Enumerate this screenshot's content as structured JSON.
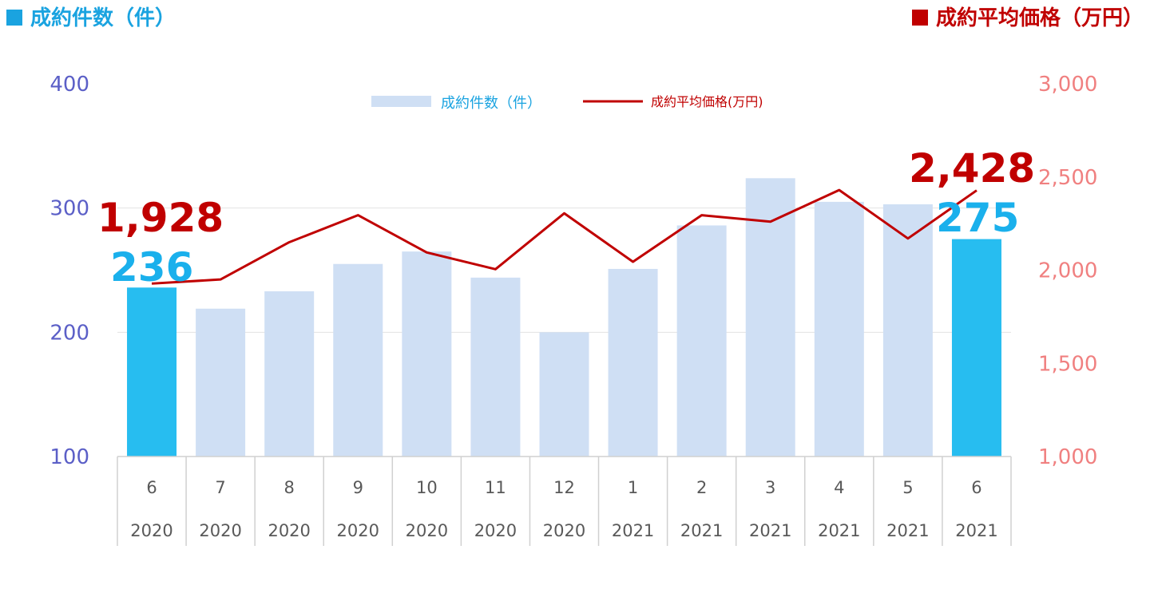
{
  "headers": {
    "left": "成約件数（件）",
    "right": "成約平均価格（万円）"
  },
  "legend": {
    "bar": "成約件数（件）",
    "line": "成約平均価格(万円)"
  },
  "colors": {
    "bar": "#cfdff4",
    "bar_highlight": "#27bdf0",
    "line": "#c00000",
    "left_axis": "#5b5fc7",
    "right_axis": "#f08080"
  },
  "chart_data": {
    "type": "bar",
    "categories": [
      "6",
      "7",
      "8",
      "9",
      "10",
      "11",
      "12",
      "1",
      "2",
      "3",
      "4",
      "5",
      "6"
    ],
    "years": [
      "2020",
      "2020",
      "2020",
      "2020",
      "2020",
      "2020",
      "2020",
      "2021",
      "2021",
      "2021",
      "2021",
      "2021",
      "2021"
    ],
    "series": [
      {
        "name": "成約件数（件）",
        "type": "bar",
        "axis": "left",
        "values": [
          236,
          219,
          233,
          255,
          265,
          244,
          200,
          251,
          286,
          324,
          305,
          303,
          275
        ],
        "highlight": [
          0,
          12
        ]
      },
      {
        "name": "成約平均価格(万円)",
        "type": "line",
        "axis": "right",
        "values": [
          1928,
          1950,
          2150,
          2295,
          2095,
          2005,
          2305,
          2045,
          2295,
          2260,
          2430,
          2170,
          2428
        ]
      }
    ],
    "y_left": {
      "min": 100,
      "max": 400,
      "ticks": [
        "100",
        "200",
        "300",
        "400"
      ]
    },
    "y_right": {
      "min": 1000,
      "max": 3000,
      "ticks": [
        "1,000",
        "1,500",
        "2,000",
        "2,500",
        "3,000"
      ]
    },
    "callouts": {
      "first_count": "236",
      "first_price": "1,928",
      "last_count": "275",
      "last_price": "2,428"
    },
    "grid": true,
    "legend_position": "top-center"
  }
}
